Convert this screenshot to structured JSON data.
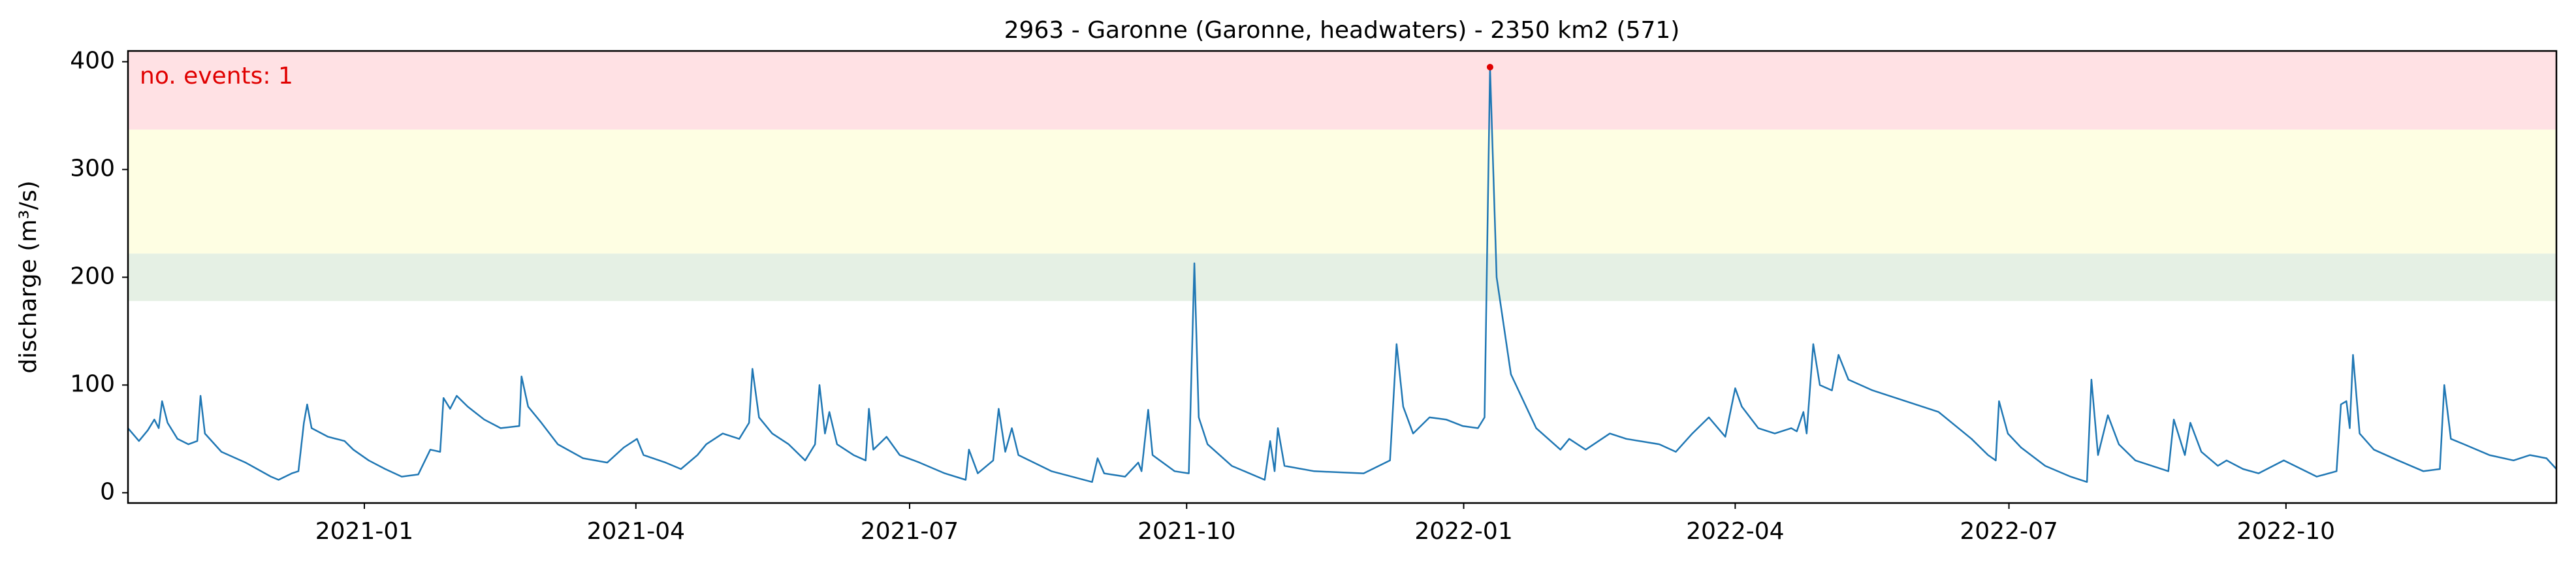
{
  "chart_data": {
    "type": "line",
    "title": "2963 - Garonne (Garonne, headwaters) - 2350 km2 (571)",
    "y_label": "discharge (m³/s)",
    "annotation": "no. events: 1",
    "annotation_color": "#e00000",
    "color": "#1f77b4",
    "xlim": [
      2020.785,
      2022.994
    ],
    "ylim": [
      -9.5,
      410
    ],
    "yticks": [
      0,
      100,
      200,
      300,
      400
    ],
    "xticks": [
      {
        "value": 2021.0,
        "label": "2021-01"
      },
      {
        "value": 2021.247,
        "label": "2021-04"
      },
      {
        "value": 2021.496,
        "label": "2021-07"
      },
      {
        "value": 2021.748,
        "label": "2021-10"
      },
      {
        "value": 2022.0,
        "label": "2022-01"
      },
      {
        "value": 2022.247,
        "label": "2022-04"
      },
      {
        "value": 2022.496,
        "label": "2022-07"
      },
      {
        "value": 2022.748,
        "label": "2022-10"
      }
    ],
    "bands": [
      {
        "ymin": 178,
        "ymax": 222,
        "color": "#e5f0e4"
      },
      {
        "ymin": 222,
        "ymax": 337,
        "color": "#fefee3"
      },
      {
        "ymin": 337,
        "ymax": 410,
        "color": "#ffe1e4"
      }
    ],
    "events": {
      "x": [
        2022.024
      ],
      "values": [
        395
      ],
      "color": "#e00000"
    },
    "x": [
      2020.785,
      2020.795,
      2020.803,
      2020.809,
      2020.813,
      2020.816,
      2020.821,
      2020.83,
      2020.84,
      2020.848,
      2020.851,
      2020.855,
      2020.87,
      2020.892,
      2020.915,
      2020.922,
      2020.934,
      2020.94,
      2020.945,
      2020.948,
      2020.952,
      2020.967,
      2020.982,
      2020.99,
      2021.004,
      2021.019,
      2021.034,
      2021.049,
      2021.06,
      2021.069,
      2021.072,
      2021.078,
      2021.084,
      2021.094,
      2021.109,
      2021.124,
      2021.141,
      2021.143,
      2021.149,
      2021.161,
      2021.176,
      2021.199,
      2021.221,
      2021.236,
      2021.248,
      2021.254,
      2021.274,
      2021.288,
      2021.303,
      2021.311,
      2021.326,
      2021.341,
      2021.35,
      2021.353,
      2021.359,
      2021.371,
      2021.386,
      2021.401,
      2021.41,
      2021.414,
      2021.419,
      2021.423,
      2021.43,
      2021.445,
      2021.456,
      2021.459,
      2021.463,
      2021.475,
      2021.487,
      2021.505,
      2021.528,
      2021.547,
      2021.55,
      2021.558,
      2021.572,
      2021.577,
      2021.583,
      2021.589,
      2021.595,
      2021.625,
      2021.662,
      2021.667,
      2021.673,
      2021.692,
      2021.704,
      2021.707,
      2021.713,
      2021.717,
      2021.737,
      2021.75,
      2021.755,
      2021.759,
      2021.767,
      2021.789,
      2021.819,
      2021.824,
      2021.828,
      2021.831,
      2021.837,
      2021.864,
      2021.909,
      2021.933,
      2021.939,
      2021.945,
      2021.954,
      2021.969,
      2021.984,
      2021.999,
      2022.013,
      2022.019,
      2022.024,
      2022.03,
      2022.043,
      2022.066,
      2022.088,
      2022.096,
      2022.111,
      2022.133,
      2022.148,
      2022.178,
      2022.193,
      2022.208,
      2022.223,
      2022.238,
      2022.247,
      2022.253,
      2022.268,
      2022.283,
      2022.298,
      2022.303,
      2022.309,
      2022.312,
      2022.318,
      2022.324,
      2022.335,
      2022.341,
      2022.35,
      2022.372,
      2022.402,
      2022.432,
      2022.462,
      2022.477,
      2022.484,
      2022.487,
      2022.495,
      2022.507,
      2022.529,
      2022.552,
      2022.567,
      2022.571,
      2022.577,
      2022.586,
      2022.596,
      2022.611,
      2022.641,
      2022.646,
      2022.656,
      2022.661,
      2022.671,
      2022.686,
      2022.694,
      2022.709,
      2022.723,
      2022.746,
      2022.776,
      2022.794,
      2022.798,
      2022.803,
      2022.806,
      2022.809,
      2022.815,
      2022.828,
      2022.85,
      2022.873,
      2022.888,
      2022.892,
      2022.898,
      2022.91,
      2022.933,
      2022.955,
      2022.97,
      2022.985,
      2022.994
    ],
    "values": [
      60,
      48,
      58,
      68,
      60,
      85,
      65,
      50,
      45,
      48,
      90,
      55,
      38,
      28,
      15,
      12,
      18,
      20,
      65,
      82,
      60,
      52,
      48,
      40,
      30,
      22,
      15,
      17,
      40,
      38,
      88,
      78,
      90,
      80,
      68,
      60,
      62,
      108,
      80,
      65,
      45,
      32,
      28,
      42,
      50,
      35,
      28,
      22,
      35,
      45,
      55,
      50,
      65,
      115,
      70,
      55,
      45,
      30,
      45,
      100,
      55,
      75,
      45,
      35,
      30,
      78,
      40,
      52,
      35,
      28,
      18,
      12,
      40,
      18,
      30,
      78,
      38,
      60,
      35,
      20,
      10,
      32,
      18,
      15,
      28,
      20,
      77,
      35,
      20,
      18,
      213,
      70,
      45,
      25,
      12,
      48,
      20,
      60,
      25,
      20,
      18,
      30,
      138,
      80,
      55,
      70,
      68,
      62,
      60,
      70,
      395,
      200,
      110,
      60,
      40,
      50,
      40,
      55,
      50,
      45,
      38,
      55,
      70,
      52,
      97,
      80,
      60,
      55,
      60,
      57,
      75,
      55,
      138,
      100,
      95,
      128,
      105,
      95,
      85,
      75,
      50,
      35,
      30,
      85,
      55,
      42,
      25,
      15,
      10,
      105,
      35,
      72,
      45,
      30,
      20,
      68,
      35,
      65,
      38,
      25,
      30,
      22,
      18,
      30,
      15,
      20,
      82,
      85,
      60,
      128,
      55,
      40,
      30,
      20,
      22,
      100,
      50,
      45,
      35,
      30,
      35,
      32,
      22
    ]
  }
}
